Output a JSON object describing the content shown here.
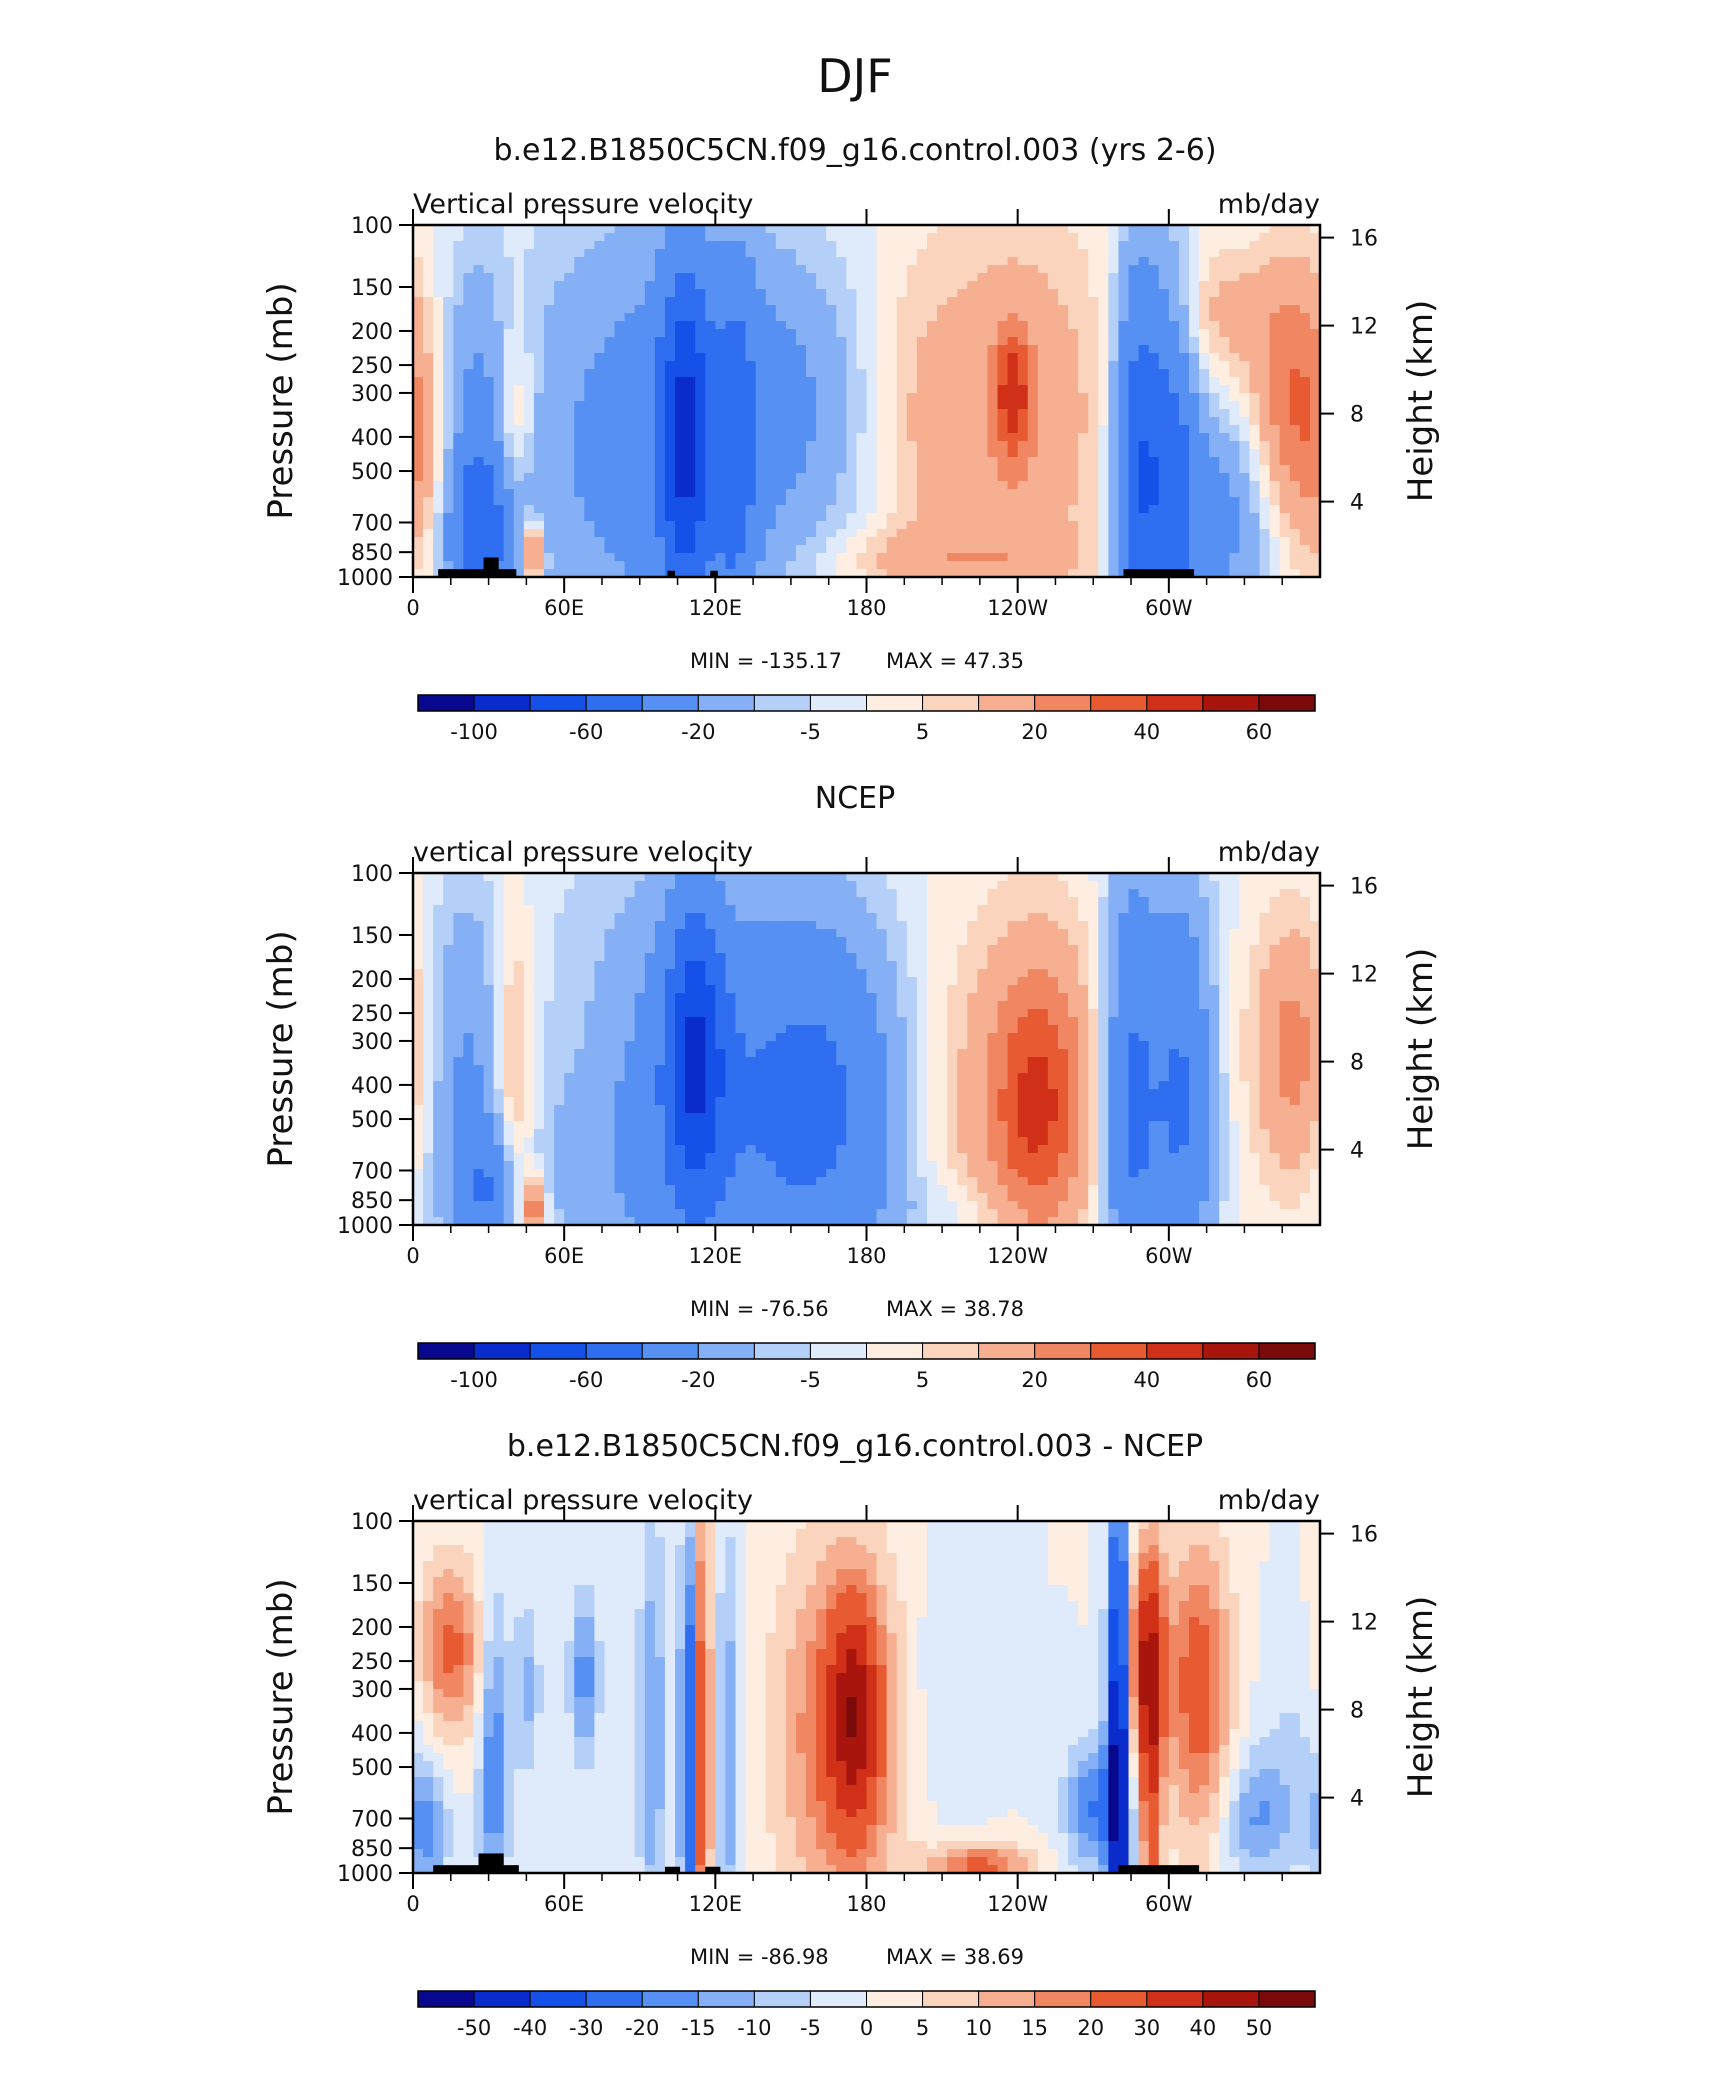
{
  "page_title": "DJF",
  "chart_data": [
    {
      "type": "heatmap",
      "title": "b.e12.B1850C5CN.f09_g16.control.003 (yrs 2-6)",
      "left_label": "Vertical pressure velocity",
      "right_label": "mb/day",
      "ylabel": "Pressure (mb)",
      "y2label": "Height (km)",
      "x_ticks": [
        "0",
        "60E",
        "120E",
        "180",
        "120W",
        "60W"
      ],
      "x_tick_lon": [
        0,
        60,
        120,
        180,
        240,
        300
      ],
      "xlim": [
        0,
        360
      ],
      "y_ticks": [
        "100",
        "150",
        "200",
        "250",
        "300",
        "400",
        "500",
        "700",
        "850",
        "1000"
      ],
      "y_tick_p": [
        100,
        150,
        200,
        250,
        300,
        400,
        500,
        700,
        850,
        1000
      ],
      "ylim": [
        1000,
        100
      ],
      "y_log": true,
      "y2_ticks": [
        "4",
        "8",
        "12",
        "16"
      ],
      "y2_tick_km": [
        4,
        8,
        12,
        16
      ],
      "min_label": "MIN = -135.17",
      "max_label": "MAX = 47.35",
      "min": -135.17,
      "max": 47.35,
      "colorbar_labels": [
        "-100",
        "-60",
        "-20",
        "-5",
        "5",
        "20",
        "40",
        "60"
      ],
      "colorbar_levels": [
        -100,
        -80,
        -60,
        -40,
        -20,
        -10,
        -5,
        0,
        5,
        10,
        20,
        30,
        40,
        50,
        60
      ],
      "fields": [
        {
          "lon": 5,
          "p": 550,
          "w": 10,
          "h": 0.5,
          "v": 15
        },
        {
          "lon": 25,
          "p": 350,
          "w": 10,
          "h": 0.7,
          "v": -20
        },
        {
          "lon": 28,
          "p": 750,
          "w": 12,
          "h": 0.4,
          "v": -45
        },
        {
          "lon": 40,
          "p": 450,
          "w": 6,
          "h": 0.6,
          "v": 22
        },
        {
          "lon": 48,
          "p": 850,
          "w": 3,
          "h": 0.15,
          "v": 40
        },
        {
          "lon": 100,
          "p": 420,
          "w": 40,
          "h": 1.0,
          "v": -30
        },
        {
          "lon": 108,
          "p": 400,
          "w": 7,
          "h": 0.8,
          "v": -60
        },
        {
          "lon": 128,
          "p": 450,
          "w": 6,
          "h": 0.9,
          "v": -30
        },
        {
          "lon": 150,
          "p": 300,
          "w": 20,
          "h": 0.6,
          "v": -12
        },
        {
          "lon": 200,
          "p": 350,
          "w": 15,
          "h": 0.8,
          "v": 8
        },
        {
          "lon": 240,
          "p": 350,
          "w": 25,
          "h": 0.9,
          "v": 18
        },
        {
          "lon": 238,
          "p": 300,
          "w": 5,
          "h": 0.3,
          "v": 32
        },
        {
          "lon": 210,
          "p": 900,
          "w": 35,
          "h": 0.15,
          "v": 12
        },
        {
          "lon": 288,
          "p": 500,
          "w": 7,
          "h": 1.0,
          "v": -55
        },
        {
          "lon": 302,
          "p": 500,
          "w": 7,
          "h": 0.9,
          "v": -40
        },
        {
          "lon": 320,
          "p": 700,
          "w": 14,
          "h": 0.5,
          "v": -25
        },
        {
          "lon": 350,
          "p": 300,
          "w": 12,
          "h": 0.6,
          "v": 30
        },
        {
          "lon": 320,
          "p": 180,
          "w": 15,
          "h": 0.3,
          "v": 12
        }
      ],
      "topography": [
        [
          10,
          41,
          950
        ],
        [
          28,
          34,
          880
        ],
        [
          101,
          104,
          960
        ],
        [
          118,
          121,
          960
        ],
        [
          282,
          310,
          950
        ]
      ]
    },
    {
      "type": "heatmap",
      "title": "NCEP",
      "left_label": "vertical pressure velocity",
      "right_label": "mb/day",
      "ylabel": "Pressure (mb)",
      "y2label": "Height (km)",
      "x_ticks": [
        "0",
        "60E",
        "120E",
        "180",
        "120W",
        "60W"
      ],
      "x_tick_lon": [
        0,
        60,
        120,
        180,
        240,
        300
      ],
      "xlim": [
        0,
        360
      ],
      "y_ticks": [
        "100",
        "150",
        "200",
        "250",
        "300",
        "400",
        "500",
        "700",
        "850",
        "1000"
      ],
      "y_tick_p": [
        100,
        150,
        200,
        250,
        300,
        400,
        500,
        700,
        850,
        1000
      ],
      "ylim": [
        1000,
        100
      ],
      "y_log": true,
      "y2_ticks": [
        "4",
        "8",
        "12",
        "16"
      ],
      "y2_tick_km": [
        4,
        8,
        12,
        16
      ],
      "min_label": "MIN = -76.56",
      "max_label": "MAX = 38.78",
      "min": -76.56,
      "max": 38.78,
      "colorbar_labels": [
        "-100",
        "-60",
        "-20",
        "-5",
        "5",
        "20",
        "40",
        "60"
      ],
      "colorbar_levels": [
        -100,
        -80,
        -60,
        -40,
        -20,
        -10,
        -5,
        0,
        5,
        10,
        20,
        30,
        40,
        50,
        60
      ],
      "fields": [
        {
          "lon": 20,
          "p": 400,
          "w": 12,
          "h": 0.9,
          "v": -20
        },
        {
          "lon": 40,
          "p": 400,
          "w": 6,
          "h": 0.8,
          "v": 20
        },
        {
          "lon": 48,
          "p": 900,
          "w": 3,
          "h": 0.15,
          "v": 35
        },
        {
          "lon": 30,
          "p": 800,
          "w": 8,
          "h": 0.3,
          "v": -30
        },
        {
          "lon": 120,
          "p": 450,
          "w": 45,
          "h": 1.0,
          "v": -35
        },
        {
          "lon": 112,
          "p": 320,
          "w": 8,
          "h": 0.7,
          "v": -55
        },
        {
          "lon": 165,
          "p": 450,
          "w": 20,
          "h": 0.8,
          "v": -25
        },
        {
          "lon": 240,
          "p": 450,
          "w": 30,
          "h": 0.9,
          "v": 18
        },
        {
          "lon": 248,
          "p": 450,
          "w": 12,
          "h": 0.6,
          "v": 28
        },
        {
          "lon": 285,
          "p": 450,
          "w": 8,
          "h": 1.1,
          "v": -45
        },
        {
          "lon": 305,
          "p": 450,
          "w": 9,
          "h": 1.0,
          "v": -42
        },
        {
          "lon": 350,
          "p": 320,
          "w": 12,
          "h": 0.6,
          "v": 25
        },
        {
          "lon": 70,
          "p": 300,
          "w": 20,
          "h": 0.5,
          "v": 6
        },
        {
          "lon": 220,
          "p": 900,
          "w": 30,
          "h": 0.15,
          "v": -6
        }
      ],
      "topography": []
    },
    {
      "type": "heatmap",
      "title": "b.e12.B1850C5CN.f09_g16.control.003 - NCEP",
      "left_label": "vertical pressure velocity",
      "right_label": "mb/day",
      "ylabel": "Pressure (mb)",
      "y2label": "Height (km)",
      "x_ticks": [
        "0",
        "60E",
        "120E",
        "180",
        "120W",
        "60W"
      ],
      "x_tick_lon": [
        0,
        60,
        120,
        180,
        240,
        300
      ],
      "xlim": [
        0,
        360
      ],
      "y_ticks": [
        "100",
        "150",
        "200",
        "250",
        "300",
        "400",
        "500",
        "700",
        "850",
        "1000"
      ],
      "y_tick_p": [
        100,
        150,
        200,
        250,
        300,
        400,
        500,
        700,
        850,
        1000
      ],
      "ylim": [
        1000,
        100
      ],
      "y_log": true,
      "y2_ticks": [
        "4",
        "8",
        "12",
        "16"
      ],
      "y2_tick_km": [
        4,
        8,
        12,
        16
      ],
      "min_label": "MIN = -86.98",
      "max_label": "MAX = 38.69",
      "min": -86.98,
      "max": 38.69,
      "colorbar_labels": [
        "-50",
        "-40",
        "-30",
        "-20",
        "-15",
        "-10",
        "-5",
        "0",
        "5",
        "10",
        "15",
        "20",
        "30",
        "40",
        "50"
      ],
      "colorbar_levels": [
        -50,
        -40,
        -30,
        -20,
        -15,
        -10,
        -5,
        0,
        5,
        10,
        15,
        20,
        30,
        40,
        50
      ],
      "fields": [
        {
          "lon": 15,
          "p": 230,
          "w": 9,
          "h": 0.4,
          "v": 22
        },
        {
          "lon": 5,
          "p": 750,
          "w": 6,
          "h": 0.3,
          "v": -18
        },
        {
          "lon": 32,
          "p": 500,
          "w": 4,
          "h": 0.8,
          "v": -20
        },
        {
          "lon": 45,
          "p": 300,
          "w": 4,
          "h": 0.4,
          "v": -12
        },
        {
          "lon": 68,
          "p": 280,
          "w": 4,
          "h": 0.4,
          "v": -18
        },
        {
          "lon": 95,
          "p": 400,
          "w": 4,
          "h": 1.0,
          "v": -15
        },
        {
          "lon": 110,
          "p": 450,
          "w": 3,
          "h": 1.0,
          "v": -30
        },
        {
          "lon": 115,
          "p": 450,
          "w": 2,
          "h": 1.2,
          "v": 40
        },
        {
          "lon": 125,
          "p": 450,
          "w": 3,
          "h": 1.0,
          "v": -15
        },
        {
          "lon": 170,
          "p": 400,
          "w": 18,
          "h": 0.9,
          "v": 22
        },
        {
          "lon": 175,
          "p": 350,
          "w": 7,
          "h": 0.5,
          "v": 30
        },
        {
          "lon": 225,
          "p": 950,
          "w": 15,
          "h": 0.1,
          "v": 22
        },
        {
          "lon": 210,
          "p": 300,
          "w": 10,
          "h": 0.6,
          "v": -6
        },
        {
          "lon": 280,
          "p": 450,
          "w": 3,
          "h": 1.1,
          "v": -60
        },
        {
          "lon": 270,
          "p": 650,
          "w": 8,
          "h": 0.3,
          "v": -20
        },
        {
          "lon": 290,
          "p": 250,
          "w": 6,
          "h": 0.5,
          "v": 30
        },
        {
          "lon": 293,
          "p": 500,
          "w": 3,
          "h": 0.9,
          "v": 25
        },
        {
          "lon": 312,
          "p": 300,
          "w": 9,
          "h": 0.7,
          "v": 25
        },
        {
          "lon": 335,
          "p": 700,
          "w": 10,
          "h": 0.3,
          "v": -15
        },
        {
          "lon": 350,
          "p": 400,
          "w": 10,
          "h": 0.5,
          "v": -5
        }
      ],
      "topography": [
        [
          8,
          42,
          950
        ],
        [
          26,
          36,
          880
        ],
        [
          100,
          106,
          960
        ],
        [
          116,
          122,
          960
        ],
        [
          280,
          312,
          950
        ]
      ]
    }
  ]
}
